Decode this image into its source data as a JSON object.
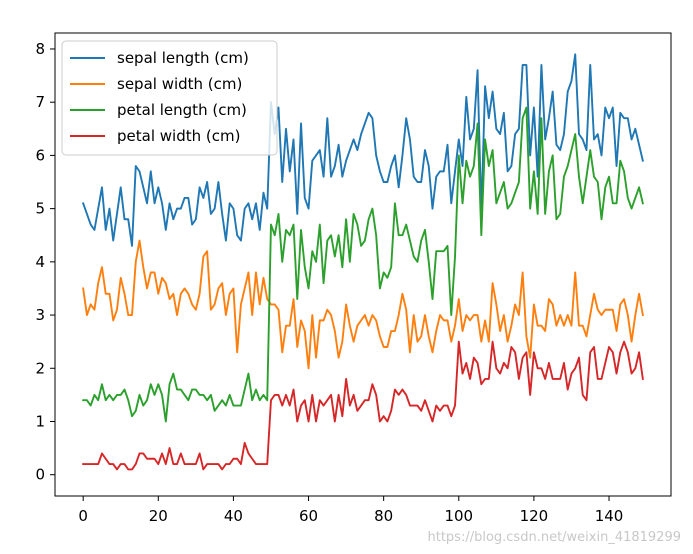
{
  "chart_data": {
    "type": "line",
    "title": "",
    "xlabel": "",
    "ylabel": "",
    "xlim": [
      -7.5,
      156.5
    ],
    "ylim": [
      -0.4,
      8.3
    ],
    "xticks": [
      0,
      20,
      40,
      60,
      80,
      100,
      120,
      140
    ],
    "yticks": [
      0,
      1,
      2,
      3,
      4,
      5,
      6,
      7,
      8
    ],
    "xtick_labels": [
      "0",
      "20",
      "40",
      "60",
      "80",
      "100",
      "120",
      "140"
    ],
    "ytick_labels": [
      "0",
      "1",
      "2",
      "3",
      "4",
      "5",
      "6",
      "7",
      "8"
    ],
    "grid": false,
    "legend_position": "top-left",
    "x": [
      0,
      1,
      2,
      3,
      4,
      5,
      6,
      7,
      8,
      9,
      10,
      11,
      12,
      13,
      14,
      15,
      16,
      17,
      18,
      19,
      20,
      21,
      22,
      23,
      24,
      25,
      26,
      27,
      28,
      29,
      30,
      31,
      32,
      33,
      34,
      35,
      36,
      37,
      38,
      39,
      40,
      41,
      42,
      43,
      44,
      45,
      46,
      47,
      48,
      49,
      50,
      51,
      52,
      53,
      54,
      55,
      56,
      57,
      58,
      59,
      60,
      61,
      62,
      63,
      64,
      65,
      66,
      67,
      68,
      69,
      70,
      71,
      72,
      73,
      74,
      75,
      76,
      77,
      78,
      79,
      80,
      81,
      82,
      83,
      84,
      85,
      86,
      87,
      88,
      89,
      90,
      91,
      92,
      93,
      94,
      95,
      96,
      97,
      98,
      99,
      100,
      101,
      102,
      103,
      104,
      105,
      106,
      107,
      108,
      109,
      110,
      111,
      112,
      113,
      114,
      115,
      116,
      117,
      118,
      119,
      120,
      121,
      122,
      123,
      124,
      125,
      126,
      127,
      128,
      129,
      130,
      131,
      132,
      133,
      134,
      135,
      136,
      137,
      138,
      139,
      140,
      141,
      142,
      143,
      144,
      145,
      146,
      147,
      148,
      149
    ],
    "series": [
      {
        "name": "sepal length (cm)",
        "color": "#1f77b4",
        "values": [
          5.1,
          4.9,
          4.7,
          4.6,
          5.0,
          5.4,
          4.6,
          5.0,
          4.4,
          4.9,
          5.4,
          4.8,
          4.8,
          4.3,
          5.8,
          5.7,
          5.4,
          5.1,
          5.7,
          5.1,
          5.4,
          5.1,
          4.6,
          5.1,
          4.8,
          5.0,
          5.0,
          5.2,
          5.2,
          4.7,
          4.8,
          5.4,
          5.2,
          5.5,
          4.9,
          5.0,
          5.5,
          4.9,
          4.4,
          5.1,
          5.0,
          4.5,
          4.4,
          5.0,
          5.1,
          4.8,
          5.1,
          4.6,
          5.3,
          5.0,
          7.0,
          6.4,
          6.9,
          5.5,
          6.5,
          5.7,
          6.3,
          4.9,
          6.6,
          5.2,
          5.0,
          5.9,
          6.0,
          6.1,
          5.6,
          6.7,
          5.6,
          5.8,
          6.2,
          5.6,
          5.9,
          6.1,
          6.3,
          6.1,
          6.4,
          6.6,
          6.8,
          6.7,
          6.0,
          5.7,
          5.5,
          5.5,
          5.8,
          6.0,
          5.4,
          6.0,
          6.7,
          6.3,
          5.6,
          5.5,
          5.5,
          6.1,
          5.8,
          5.0,
          5.6,
          5.7,
          5.7,
          6.2,
          5.1,
          5.7,
          6.3,
          5.8,
          7.1,
          6.3,
          6.5,
          7.6,
          4.9,
          7.3,
          6.7,
          7.2,
          6.5,
          6.4,
          6.8,
          5.7,
          5.8,
          6.4,
          6.5,
          7.7,
          7.7,
          6.0,
          6.9,
          5.6,
          7.7,
          6.3,
          6.7,
          7.2,
          6.2,
          6.1,
          6.4,
          7.2,
          7.4,
          7.9,
          6.4,
          6.3,
          6.1,
          7.7,
          6.3,
          6.4,
          6.0,
          6.9,
          6.7,
          6.9,
          5.8,
          6.8,
          6.7,
          6.7,
          6.3,
          6.5,
          6.2,
          5.9
        ]
      },
      {
        "name": "sepal width (cm)",
        "color": "#ff7f0e",
        "values": [
          3.5,
          3.0,
          3.2,
          3.1,
          3.6,
          3.9,
          3.4,
          3.4,
          2.9,
          3.1,
          3.7,
          3.4,
          3.0,
          3.0,
          4.0,
          4.4,
          3.9,
          3.5,
          3.8,
          3.8,
          3.4,
          3.7,
          3.6,
          3.3,
          3.4,
          3.0,
          3.4,
          3.5,
          3.4,
          3.2,
          3.1,
          3.4,
          4.1,
          4.2,
          3.1,
          3.2,
          3.5,
          3.6,
          3.0,
          3.4,
          3.5,
          2.3,
          3.2,
          3.5,
          3.8,
          3.0,
          3.8,
          3.2,
          3.7,
          3.3,
          3.2,
          3.2,
          3.1,
          2.3,
          2.8,
          2.8,
          3.3,
          2.4,
          2.9,
          2.7,
          2.0,
          3.0,
          2.2,
          2.9,
          2.9,
          3.1,
          3.0,
          2.7,
          2.2,
          2.5,
          3.2,
          2.8,
          2.5,
          2.8,
          2.9,
          3.0,
          2.8,
          3.0,
          2.9,
          2.6,
          2.4,
          2.4,
          2.7,
          2.7,
          3.0,
          3.4,
          3.1,
          2.3,
          3.0,
          2.5,
          2.6,
          3.0,
          2.6,
          2.3,
          2.7,
          3.0,
          2.9,
          2.9,
          2.5,
          2.8,
          3.3,
          2.7,
          3.0,
          2.9,
          3.0,
          3.0,
          2.5,
          2.9,
          2.5,
          3.6,
          3.2,
          2.7,
          3.0,
          2.5,
          2.8,
          3.2,
          3.0,
          3.8,
          2.6,
          2.2,
          3.2,
          2.8,
          2.8,
          2.7,
          3.3,
          3.2,
          2.8,
          3.0,
          2.8,
          3.0,
          2.8,
          3.8,
          2.8,
          2.8,
          2.6,
          3.0,
          3.4,
          3.1,
          3.0,
          3.1,
          3.1,
          3.1,
          2.7,
          3.2,
          3.3,
          3.0,
          2.5,
          3.0,
          3.4,
          3.0
        ]
      },
      {
        "name": "petal length (cm)",
        "color": "#2ca02c",
        "values": [
          1.4,
          1.4,
          1.3,
          1.5,
          1.4,
          1.7,
          1.4,
          1.5,
          1.4,
          1.5,
          1.5,
          1.6,
          1.4,
          1.1,
          1.2,
          1.5,
          1.3,
          1.4,
          1.7,
          1.5,
          1.7,
          1.5,
          1.0,
          1.7,
          1.9,
          1.6,
          1.6,
          1.5,
          1.4,
          1.6,
          1.6,
          1.5,
          1.5,
          1.4,
          1.5,
          1.2,
          1.3,
          1.4,
          1.3,
          1.5,
          1.3,
          1.3,
          1.3,
          1.6,
          1.9,
          1.4,
          1.6,
          1.4,
          1.5,
          1.4,
          4.7,
          4.5,
          4.9,
          4.0,
          4.6,
          4.5,
          4.7,
          3.3,
          4.6,
          3.9,
          3.5,
          4.2,
          4.0,
          4.7,
          3.6,
          4.4,
          4.5,
          4.1,
          4.5,
          3.9,
          4.8,
          4.0,
          4.9,
          4.7,
          4.3,
          4.4,
          4.8,
          5.0,
          4.5,
          3.5,
          3.8,
          3.7,
          3.9,
          5.1,
          4.5,
          4.5,
          4.7,
          4.4,
          4.1,
          4.0,
          4.4,
          4.6,
          4.0,
          3.3,
          4.2,
          4.2,
          4.2,
          4.3,
          3.0,
          4.1,
          6.0,
          5.1,
          5.9,
          5.6,
          5.8,
          6.6,
          4.5,
          6.3,
          5.8,
          6.1,
          5.1,
          5.3,
          5.5,
          5.0,
          5.1,
          5.3,
          5.5,
          6.7,
          6.9,
          5.0,
          5.7,
          4.9,
          6.7,
          4.9,
          5.7,
          6.0,
          4.8,
          4.9,
          5.6,
          5.8,
          6.1,
          6.4,
          5.6,
          5.1,
          5.6,
          6.1,
          5.6,
          5.5,
          4.8,
          5.4,
          5.6,
          5.1,
          5.1,
          5.9,
          5.7,
          5.2,
          5.0,
          5.2,
          5.4,
          5.1
        ]
      },
      {
        "name": "petal width (cm)",
        "color": "#d62728",
        "values": [
          0.2,
          0.2,
          0.2,
          0.2,
          0.2,
          0.4,
          0.3,
          0.2,
          0.2,
          0.1,
          0.2,
          0.2,
          0.1,
          0.1,
          0.2,
          0.4,
          0.4,
          0.3,
          0.3,
          0.3,
          0.2,
          0.4,
          0.2,
          0.5,
          0.2,
          0.2,
          0.4,
          0.2,
          0.2,
          0.2,
          0.2,
          0.4,
          0.1,
          0.2,
          0.2,
          0.2,
          0.2,
          0.1,
          0.2,
          0.2,
          0.3,
          0.3,
          0.2,
          0.6,
          0.4,
          0.3,
          0.2,
          0.2,
          0.2,
          0.2,
          1.4,
          1.5,
          1.5,
          1.3,
          1.5,
          1.3,
          1.6,
          1.0,
          1.3,
          1.4,
          1.0,
          1.5,
          1.0,
          1.4,
          1.3,
          1.4,
          1.5,
          1.0,
          1.5,
          1.1,
          1.8,
          1.3,
          1.5,
          1.2,
          1.3,
          1.4,
          1.4,
          1.7,
          1.5,
          1.0,
          1.1,
          1.0,
          1.2,
          1.6,
          1.5,
          1.6,
          1.5,
          1.3,
          1.3,
          1.3,
          1.2,
          1.4,
          1.2,
          1.0,
          1.3,
          1.2,
          1.3,
          1.3,
          1.1,
          1.3,
          2.5,
          1.9,
          2.1,
          1.8,
          2.2,
          2.1,
          1.7,
          1.8,
          1.8,
          2.5,
          2.0,
          1.9,
          2.1,
          2.0,
          2.4,
          2.3,
          1.8,
          2.2,
          2.3,
          1.5,
          2.3,
          2.0,
          2.0,
          1.8,
          2.1,
          1.8,
          1.8,
          1.8,
          2.1,
          1.6,
          1.9,
          2.0,
          2.2,
          1.5,
          1.4,
          2.3,
          2.4,
          1.8,
          1.8,
          2.1,
          2.4,
          2.3,
          1.9,
          2.3,
          2.5,
          2.3,
          1.9,
          2.0,
          2.3,
          1.8
        ]
      }
    ],
    "watermark": "https://blog.csdn.net/weixin_41819299"
  }
}
